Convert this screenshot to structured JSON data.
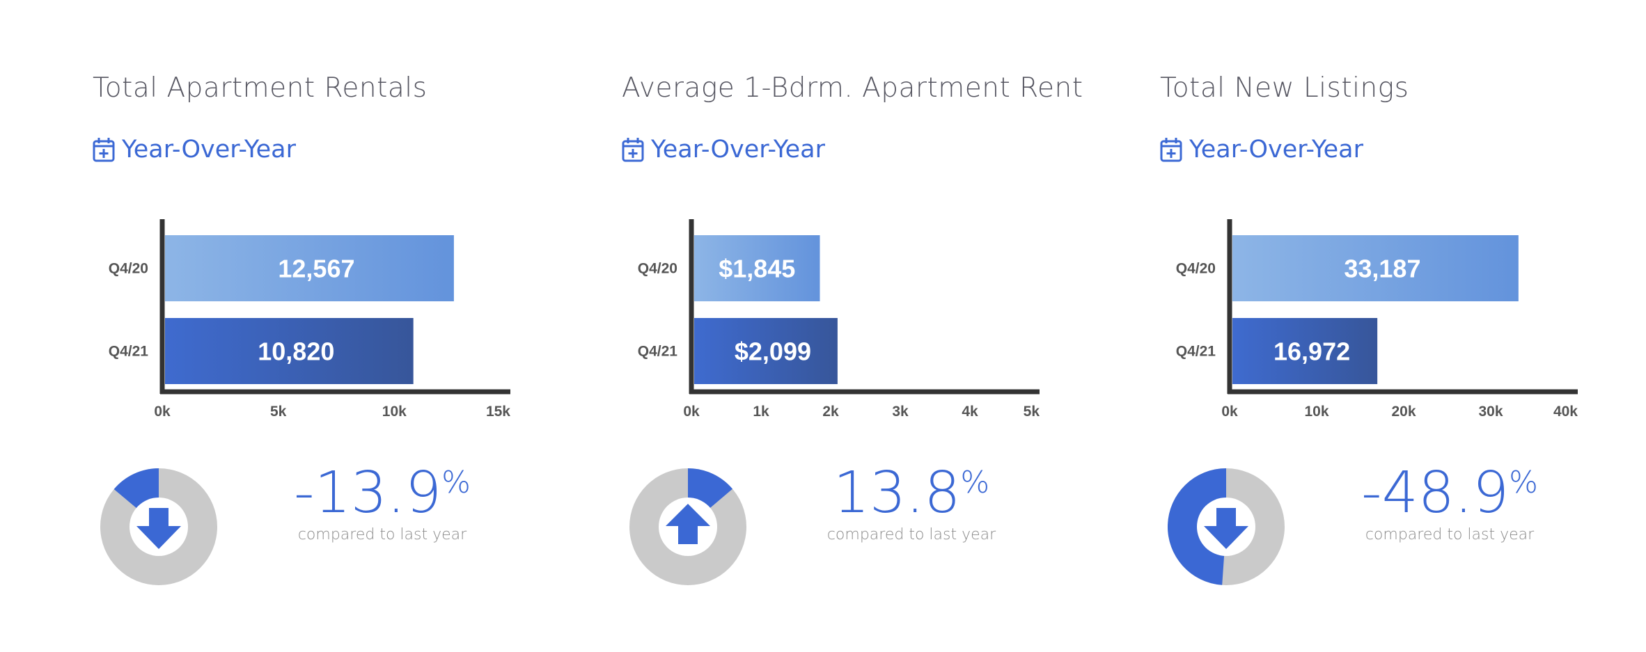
{
  "colors": {
    "accent": "#3b68d4",
    "bar_q420_start": "#8db5e6",
    "bar_q420_end": "#6393dc",
    "bar_q421_start": "#3f6bcf",
    "bar_q421_end": "#37569a",
    "axis": "#333333",
    "donut_track": "#cacaca"
  },
  "panels": [
    {
      "title": "Total Apartment Rentals",
      "period_label": "Year-Over-Year",
      "period_icon": "calendar-plus-icon",
      "change_value": "-13.9",
      "change_unit": "%",
      "change_caption": "compared to last year",
      "direction": "down",
      "direction_icon": "arrow-down-icon",
      "change_fraction": 0.139
    },
    {
      "title": "Average 1-Bdrm. Apartment Rent",
      "period_label": "Year-Over-Year",
      "period_icon": "calendar-plus-icon",
      "change_value": "13.8",
      "change_unit": "%",
      "change_caption": "compared to last year",
      "direction": "up",
      "direction_icon": "arrow-up-icon",
      "change_fraction": 0.138
    },
    {
      "title": "Total New Listings",
      "period_label": "Year-Over-Year",
      "period_icon": "calendar-plus-icon",
      "change_value": "-48.9",
      "change_unit": "%",
      "change_caption": "compared to last year",
      "direction": "down",
      "direction_icon": "arrow-down-icon",
      "change_fraction": 0.489
    }
  ],
  "chart_data": [
    {
      "type": "bar",
      "orientation": "horizontal",
      "categories": [
        "Q4/20",
        "Q4/21"
      ],
      "values": [
        12567,
        10820
      ],
      "value_labels": [
        "12,567",
        "10,820"
      ],
      "xlim": [
        0,
        15000
      ],
      "xticks": [
        0,
        5000,
        10000,
        15000
      ],
      "xtick_labels": [
        "0k",
        "5k",
        "10k",
        "15k"
      ],
      "grid": false
    },
    {
      "type": "bar",
      "orientation": "horizontal",
      "categories": [
        "Q4/20",
        "Q4/21"
      ],
      "values": [
        1845,
        2099
      ],
      "value_labels": [
        "$1,845",
        "$2,099"
      ],
      "xlim": [
        0,
        5000
      ],
      "xticks": [
        0,
        1000,
        2000,
        3000,
        4000,
        5000
      ],
      "xtick_labels": [
        "0k",
        "1k",
        "2k",
        "3k",
        "4k",
        "5k"
      ],
      "grid": false
    },
    {
      "type": "bar",
      "orientation": "horizontal",
      "categories": [
        "Q4/20",
        "Q4/21"
      ],
      "values": [
        33187,
        16972
      ],
      "value_labels": [
        "33,187",
        "16,972"
      ],
      "xlim": [
        0,
        40000
      ],
      "xticks": [
        0,
        10000,
        20000,
        30000,
        40000
      ],
      "xtick_labels": [
        "0k",
        "10k",
        "20k",
        "30k",
        "40k"
      ],
      "grid": false
    }
  ]
}
